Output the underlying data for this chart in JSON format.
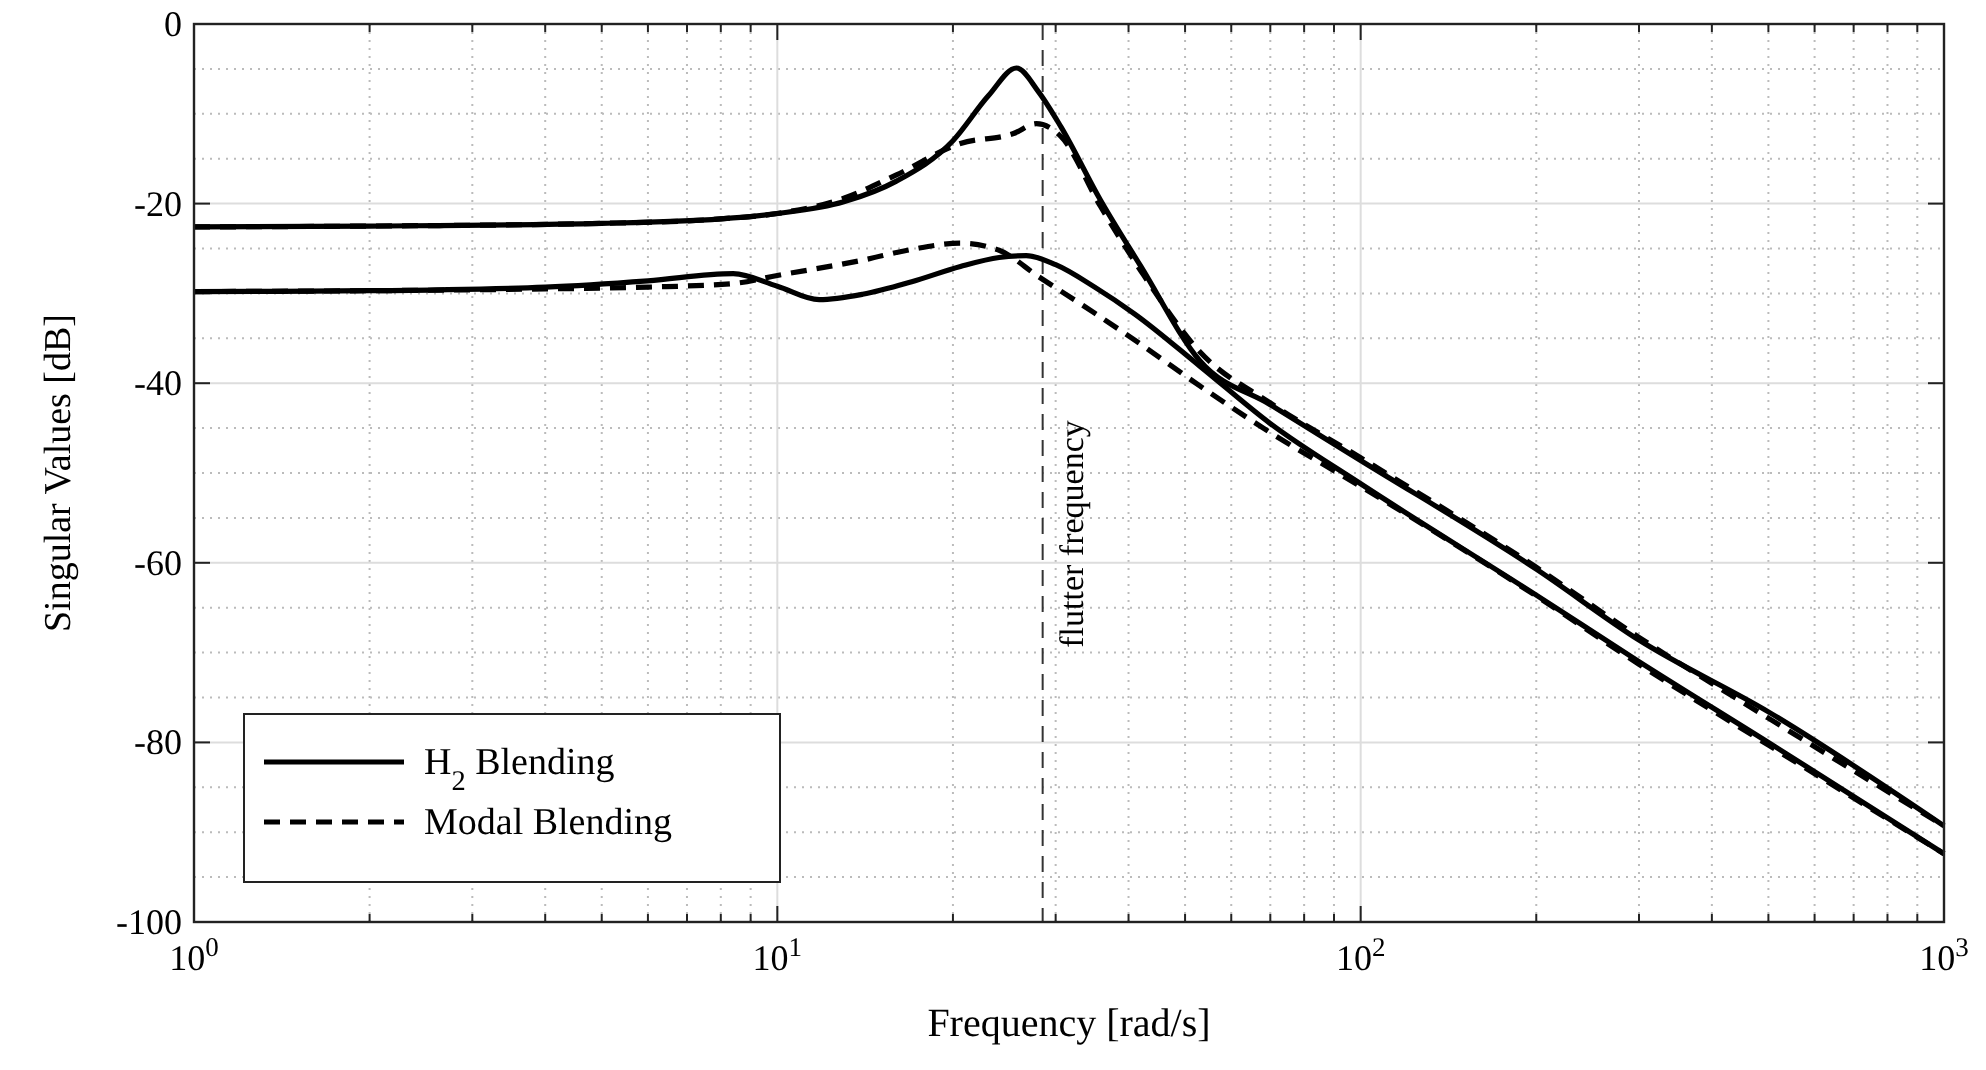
{
  "chart_data": {
    "type": "line",
    "xlabel": "Frequency [rad/s]",
    "ylabel": "Singular Values [dB]",
    "log": "x",
    "grid": true,
    "legend": "bottom left",
    "xlim": [
      1,
      1000
    ],
    "xticks": [
      {
        "value": 1,
        "label": "10$^{0}$"
      },
      {
        "value": 10,
        "label": "10$^{1}$"
      },
      {
        "value": 100,
        "label": "10$^{2}$"
      },
      {
        "value": 1000,
        "label": "10$^{3}$"
      }
    ],
    "ylim": [
      -100,
      0
    ],
    "yticks": [
      -100,
      -80,
      -60,
      -40,
      -20,
      0
    ],
    "series": [
      {
        "name": "H$_{2}$ Blending",
        "color": "#000000",
        "line_style": "solid",
        "x": [
          1,
          2,
          5,
          8,
          10,
          13,
          16,
          20,
          23,
          25.7,
          28,
          30.6,
          35.8,
          42,
          53,
          70,
          100,
          200,
          300,
          500,
          1000
        ],
        "values": [
          -22.6,
          -22.5,
          -22.2,
          -21.7,
          -21.1,
          -19.8,
          -17.5,
          -13,
          -8,
          -4.9,
          -7.5,
          -11.4,
          -19.6,
          -27,
          -37.5,
          -42.4,
          -48.6,
          -60.7,
          -68.6,
          -76.6,
          -89.3
        ]
      },
      {
        "color": "#000000",
        "line_style": "solid",
        "x": [
          1,
          2,
          4,
          6,
          8.4,
          10,
          11.8,
          14,
          17,
          20.6,
          24,
          26.7,
          30,
          35,
          41,
          53,
          70,
          100,
          200,
          300,
          500,
          1000
        ],
        "values": [
          -29.8,
          -29.7,
          -29.3,
          -28.6,
          -27.8,
          -29.2,
          -30.7,
          -30.1,
          -28.7,
          -27,
          -26,
          -25.8,
          -26.8,
          -29.3,
          -32.3,
          -38.1,
          -44.5,
          -51.2,
          -63.6,
          -71,
          -80,
          -92.4
        ]
      },
      {
        "name": "Modal Blending",
        "color": "#000000",
        "line_style": "dashed",
        "x": [
          1,
          2,
          5,
          8,
          10,
          13,
          16,
          20.6,
          25.4,
          27.8,
          30.6,
          35.8,
          42,
          53,
          70,
          100,
          200,
          300,
          500,
          1000
        ],
        "values": [
          -22.6,
          -22.5,
          -22.2,
          -21.7,
          -21.1,
          -19.4,
          -16.8,
          -13.3,
          -12.2,
          -11.1,
          -12.5,
          -20.3,
          -27.5,
          -36.5,
          -42.2,
          -48.3,
          -60.5,
          -68.3,
          -77.3,
          -89.3
        ]
      },
      {
        "color": "#000000",
        "line_style": "dashed",
        "x": [
          1,
          2,
          4,
          6,
          8.4,
          10,
          14,
          17,
          20.6,
          24,
          28,
          35,
          41,
          53,
          70,
          100,
          200,
          300,
          500,
          1000
        ],
        "values": [
          -29.8,
          -29.7,
          -29.5,
          -29.3,
          -28.9,
          -28,
          -26.3,
          -25.1,
          -24.4,
          -25.2,
          -28.1,
          -32.2,
          -35.2,
          -40.3,
          -45.5,
          -51.5,
          -63.7,
          -71.3,
          -80.3,
          -92.4
        ]
      }
    ],
    "ref_lines": [
      {
        "axis": "x",
        "value": 28.5,
        "label": "flutter frequency",
        "color": "#333333",
        "line_style": "dashed"
      }
    ]
  }
}
